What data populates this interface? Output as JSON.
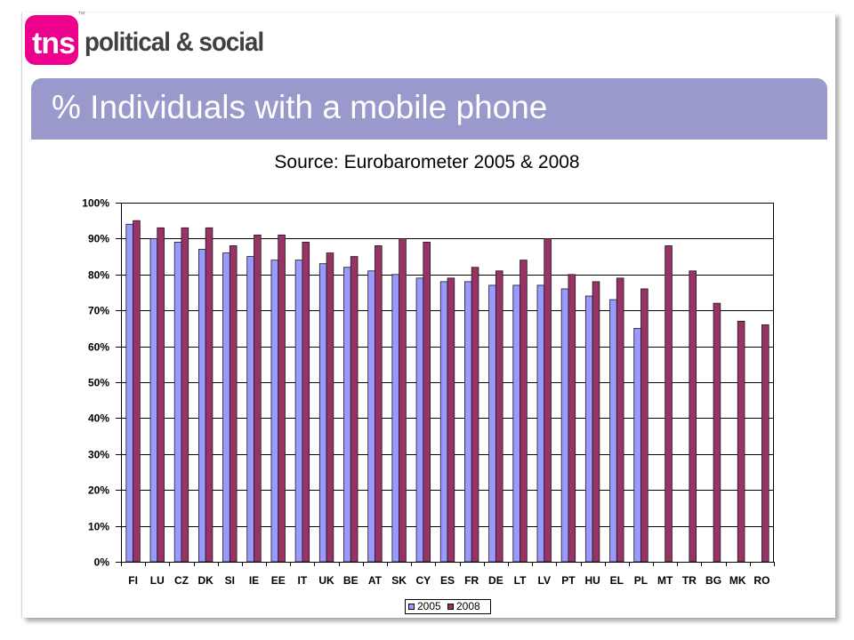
{
  "brand": {
    "logo_text": "tns",
    "trademark": "™",
    "tagline": "political & social",
    "logo_color": "#EC008C",
    "tagline_color": "#404040"
  },
  "theme": {
    "title_bar_color": "#9999CC"
  },
  "chart_data": {
    "type": "bar",
    "title": "% Individuals with a mobile phone",
    "subtitle": "Source: Eurobarometer 2005 & 2008",
    "categories": [
      "FI",
      "LU",
      "CZ",
      "DK",
      "SI",
      "IE",
      "EE",
      "IT",
      "UK",
      "BE",
      "AT",
      "SK",
      "CY",
      "ES",
      "FR",
      "DE",
      "LT",
      "LV",
      "PT",
      "HU",
      "EL",
      "PL",
      "MT",
      "TR",
      "BG",
      "MK",
      "RO"
    ],
    "series": [
      {
        "name": "2005",
        "color": "#9999FF",
        "values": [
          94,
          90,
          89,
          87,
          86,
          85,
          84,
          84,
          83,
          82,
          81,
          80,
          79,
          78,
          78,
          77,
          77,
          77,
          76,
          74,
          73,
          65,
          null,
          null,
          null,
          null,
          null
        ]
      },
      {
        "name": "2008",
        "color": "#993366",
        "values": [
          95,
          93,
          93,
          93,
          88,
          91,
          91,
          89,
          86,
          85,
          88,
          90,
          89,
          79,
          82,
          81,
          84,
          90,
          80,
          78,
          79,
          76,
          88,
          81,
          72,
          67,
          66
        ]
      }
    ],
    "ylim": [
      0,
      100
    ],
    "yticks": [
      0,
      10,
      20,
      30,
      40,
      50,
      60,
      70,
      80,
      90,
      100
    ],
    "ytick_labels": [
      "0%",
      "10%",
      "20%",
      "30%",
      "40%",
      "50%",
      "60%",
      "70%",
      "80%",
      "90%",
      "100%"
    ],
    "grid": true,
    "legend_position": "bottom"
  }
}
